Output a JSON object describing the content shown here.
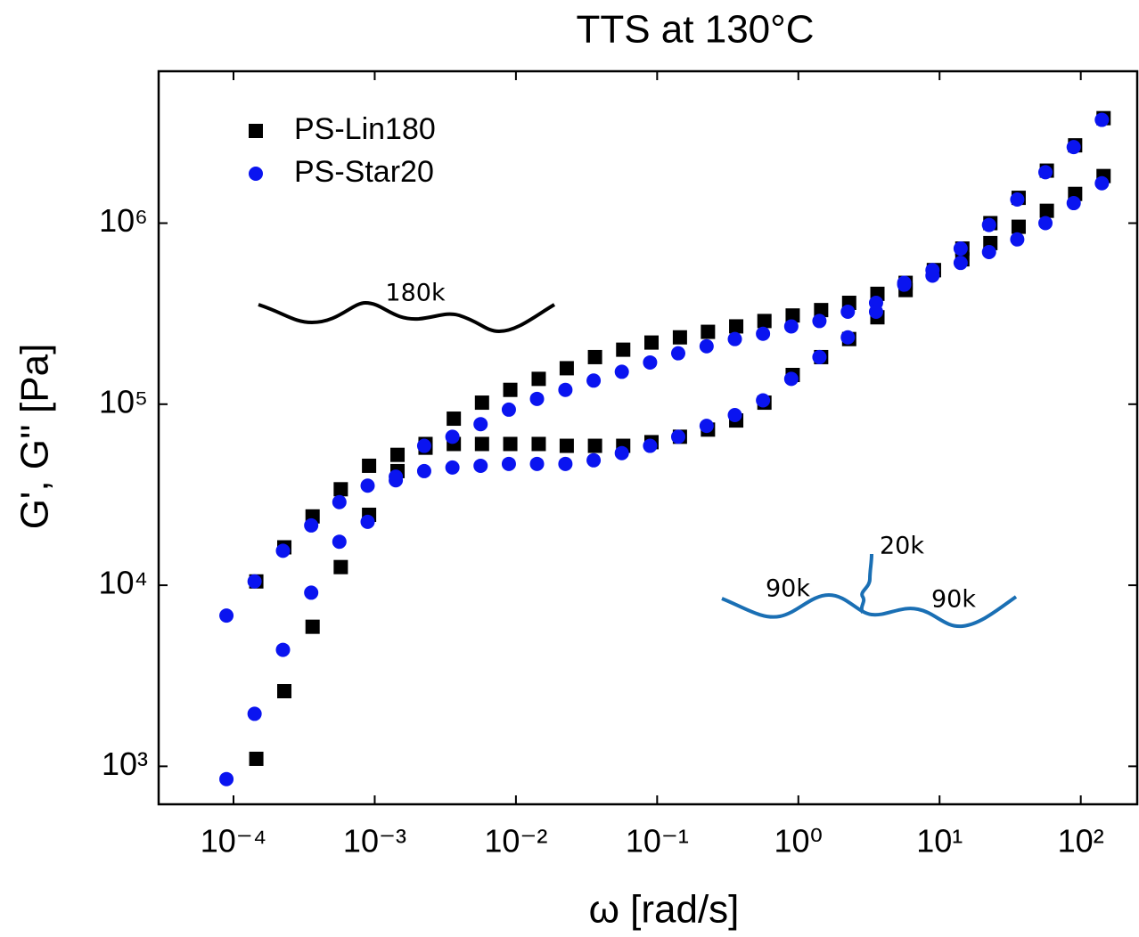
{
  "chart_data": {
    "type": "scatter",
    "title": "TTS at 130°C",
    "x_label": "ω [rad/s]",
    "y_label": "G', G'' [Pa]",
    "xscale": "log",
    "yscale": "log",
    "legend": "upper left",
    "xlim": [
      2.95e-05,
      251
    ],
    "ylim": [
      617,
      6900000
    ],
    "xticks": [
      {
        "value": 0.0001,
        "label": "10⁻⁴"
      },
      {
        "value": 0.001,
        "label": "10⁻³"
      },
      {
        "value": 0.01,
        "label": "10⁻²"
      },
      {
        "value": 0.1,
        "label": "10⁻¹"
      },
      {
        "value": 1,
        "label": "10⁰"
      },
      {
        "value": 10,
        "label": "10¹"
      },
      {
        "value": 100,
        "label": "10²"
      }
    ],
    "yticks": [
      {
        "value": 1000,
        "label": "10³"
      },
      {
        "value": 10000,
        "label": "10⁴"
      },
      {
        "value": 100000,
        "label": "10⁵"
      },
      {
        "value": 1000000,
        "label": "10⁶"
      }
    ],
    "annotations": [
      "180k",
      "20k",
      "90k",
      "90k"
    ],
    "series": [
      {
        "name": "PS-Lin180",
        "color": "#000000",
        "marker": "square",
        "x": [
          0.000145,
          0.000229,
          0.000363,
          0.000575,
          0.000912,
          0.00145,
          0.00229,
          0.00363,
          0.00575,
          0.00912,
          0.0145,
          0.0229,
          0.0363,
          0.0575,
          0.0912,
          0.145,
          0.229,
          0.363,
          0.575,
          0.912,
          1.45,
          2.29,
          3.63,
          5.75,
          9.12,
          14.5,
          22.9,
          36.3,
          57.5,
          91.2,
          145
        ],
        "values": [
          1100,
          2600,
          5900,
          12600,
          24500,
          42700,
          60300,
          83200,
          102000,
          120000,
          138000,
          158000,
          182000,
          200000,
          219000,
          234000,
          251000,
          269000,
          288000,
          309000,
          331000,
          363000,
          407000,
          468000,
          550000,
          724000,
          1000000,
          1380000,
          1950000,
          2690000,
          3800000
        ],
        "values_loss": [
          10500,
          16200,
          24000,
          33900,
          45700,
          52500,
          57500,
          60300,
          60300,
          60300,
          60300,
          58900,
          58900,
          58900,
          61700,
          66100,
          72400,
          81300,
          102000,
          145000,
          182000,
          229000,
          302000,
          427000,
          550000,
          631000,
          776000,
          955000,
          1170000,
          1450000,
          1820000
        ]
      },
      {
        "name": "PS-Star20",
        "color": "#0a14f0",
        "marker": "circle",
        "x": [
          8.91e-05,
          0.000141,
          0.000224,
          0.000355,
          0.000562,
          0.000891,
          0.00141,
          0.00224,
          0.00355,
          0.00562,
          0.00891,
          0.0141,
          0.0224,
          0.0355,
          0.0562,
          0.0891,
          0.141,
          0.224,
          0.355,
          0.562,
          0.891,
          1.41,
          2.24,
          3.55,
          5.62,
          8.91,
          14.1,
          22.4,
          35.5,
          56.2,
          89.1,
          141
        ],
        "values": [
          850,
          1950,
          4400,
          9100,
          17400,
          22400,
          39800,
          58900,
          66100,
          77600,
          93300,
          107000,
          120000,
          135000,
          151000,
          170000,
          191000,
          209000,
          229000,
          245000,
          269000,
          288000,
          324000,
          363000,
          468000,
          550000,
          724000,
          977000,
          1350000,
          1910000,
          2630000,
          3720000
        ],
        "values_loss": [
          6800,
          10500,
          15500,
          21400,
          28800,
          35500,
          38000,
          42700,
          44700,
          45700,
          46800,
          46800,
          46800,
          49000,
          53700,
          58900,
          66100,
          75900,
          87100,
          105000,
          138000,
          182000,
          234000,
          324000,
          457000,
          513000,
          603000,
          692000,
          813000,
          1000000,
          1290000,
          1660000
        ]
      }
    ]
  }
}
